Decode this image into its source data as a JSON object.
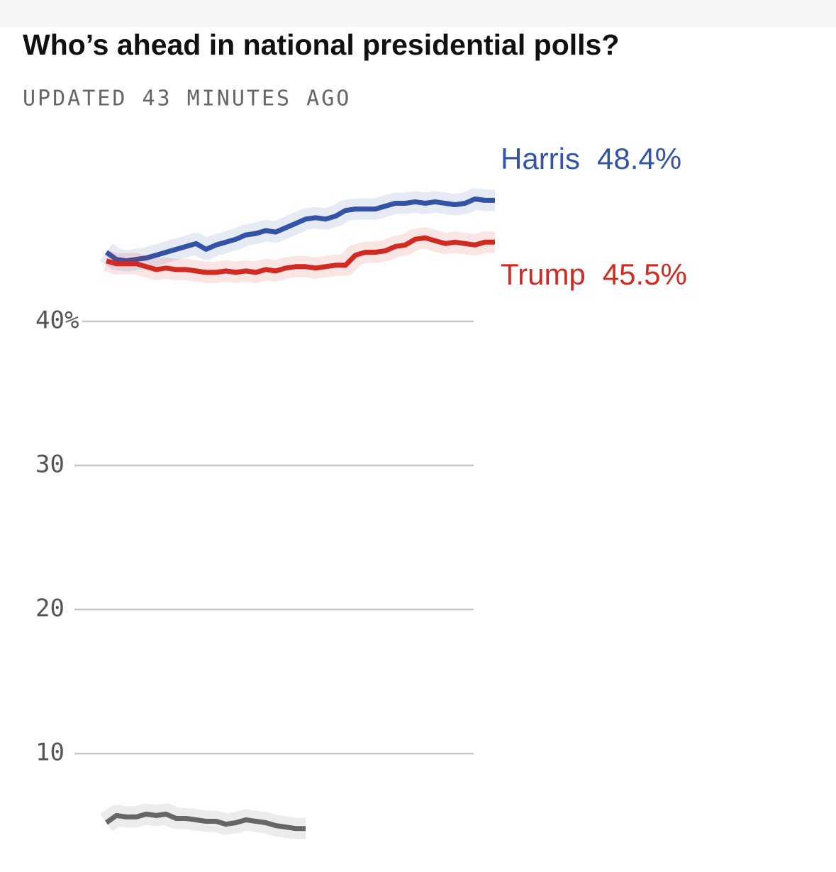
{
  "chart_data": {
    "type": "line",
    "title": "Who’s ahead in national presidential polls?",
    "subtitle": "UPDATED 43 MINUTES AGO",
    "categories": [
      null,
      null,
      null,
      null,
      null,
      null,
      null,
      null,
      null,
      null,
      null,
      null,
      null,
      null,
      null,
      null,
      null,
      null,
      null,
      null,
      null,
      null,
      null,
      null,
      null,
      null,
      null,
      null,
      null,
      null,
      null,
      null,
      null,
      null,
      null,
      null,
      null,
      null,
      null,
      null
    ],
    "series": [
      {
        "name": "Harris",
        "color": "#3353a6",
        "values": [
          44.8,
          44.3,
          44.2,
          44.3,
          44.4,
          44.6,
          44.8,
          45.0,
          45.2,
          45.4,
          45.0,
          45.3,
          45.5,
          45.7,
          46.0,
          46.1,
          46.3,
          46.2,
          46.5,
          46.8,
          47.1,
          47.2,
          47.1,
          47.3,
          47.7,
          47.8,
          47.8,
          47.8,
          48.0,
          48.2,
          48.2,
          48.3,
          48.2,
          48.3,
          48.2,
          48.1,
          48.2,
          48.5,
          48.4,
          48.4
        ],
        "value_labels": [
          null,
          null,
          null,
          null,
          null,
          null,
          null,
          null,
          null,
          null,
          null,
          null,
          null,
          null,
          null,
          null,
          null,
          null,
          null,
          null,
          null,
          null,
          null,
          null,
          null,
          null,
          null,
          null,
          null,
          null,
          null,
          null,
          null,
          null,
          null,
          null,
          null,
          null,
          null,
          "48.4%"
        ]
      },
      {
        "name": "Trump",
        "color": "#d02a22",
        "values": [
          44.2,
          44.0,
          44.0,
          44.0,
          43.8,
          43.6,
          43.7,
          43.6,
          43.6,
          43.5,
          43.4,
          43.4,
          43.5,
          43.4,
          43.5,
          43.4,
          43.6,
          43.5,
          43.7,
          43.8,
          43.8,
          43.7,
          43.8,
          43.9,
          43.9,
          44.6,
          44.8,
          44.8,
          44.9,
          45.2,
          45.3,
          45.7,
          45.8,
          45.6,
          45.4,
          45.5,
          45.4,
          45.3,
          45.5,
          45.5
        ],
        "value_labels": [
          null,
          null,
          null,
          null,
          null,
          null,
          null,
          null,
          null,
          null,
          null,
          null,
          null,
          null,
          null,
          null,
          null,
          null,
          null,
          null,
          null,
          null,
          null,
          null,
          null,
          null,
          null,
          null,
          null,
          null,
          null,
          null,
          null,
          null,
          null,
          null,
          null,
          null,
          null,
          "45.5%"
        ]
      },
      {
        "color": "#666666",
        "values": [
          5.2,
          5.7,
          5.6,
          5.6,
          5.8,
          5.7,
          5.8,
          5.5,
          5.5,
          5.4,
          5.3,
          5.3,
          5.1,
          5.2,
          5.4,
          5.3,
          5.2,
          5.0,
          4.9,
          4.8,
          4.8,
          null,
          null,
          null,
          null,
          null,
          null,
          null,
          null,
          null,
          null,
          null,
          null,
          null,
          null,
          null,
          null,
          null,
          null,
          null
        ]
      }
    ],
    "ylim": [
      3.7,
      53
    ],
    "yticks": [
      {
        "value": 40,
        "label": "40%"
      },
      30,
      20,
      10
    ],
    "grid": true
  }
}
